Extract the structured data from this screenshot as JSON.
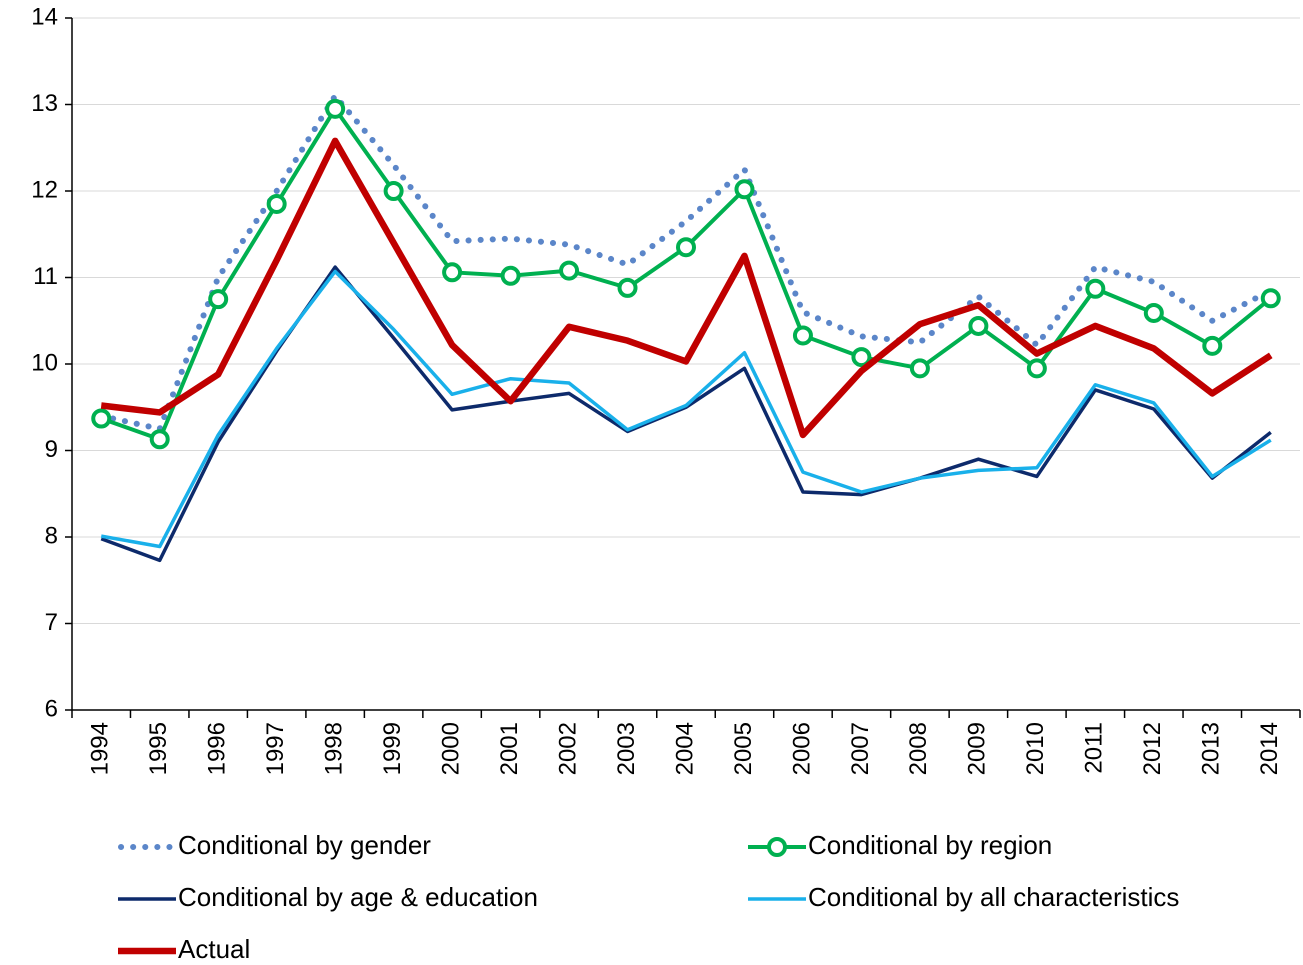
{
  "chart_data": {
    "type": "line",
    "categories": [
      "1994",
      "1995",
      "1996",
      "1997",
      "1998",
      "1999",
      "2000",
      "2001",
      "2002",
      "2003",
      "2004",
      "2005",
      "2006",
      "2007",
      "2008",
      "2009",
      "2010",
      "2011",
      "2012",
      "2013",
      "2014"
    ],
    "ylim": [
      6,
      14
    ],
    "yticks": [
      6,
      7,
      8,
      9,
      10,
      11,
      12,
      13,
      14
    ],
    "grid": true,
    "series": [
      {
        "name": "Conditional by gender",
        "color": "#5b86c9",
        "dash": "dotted",
        "width": 6,
        "values": [
          9.4,
          9.25,
          11.0,
          12.0,
          13.1,
          12.3,
          11.42,
          11.45,
          11.38,
          11.15,
          11.65,
          12.25,
          10.6,
          10.32,
          10.25,
          10.78,
          10.22,
          11.12,
          10.95,
          10.5,
          10.85
        ]
      },
      {
        "name": "Conditional by region",
        "color": "#00b050",
        "marker": "circle",
        "width": 4,
        "values": [
          9.37,
          9.13,
          10.75,
          11.85,
          12.95,
          12.0,
          11.06,
          11.02,
          11.08,
          10.88,
          11.35,
          12.02,
          10.33,
          10.08,
          9.95,
          10.44,
          9.95,
          10.87,
          10.59,
          10.21,
          10.76
        ]
      },
      {
        "name": "Conditional by age & education",
        "color": "#0d2a6b",
        "width": 3.5,
        "values": [
          7.98,
          7.73,
          9.1,
          10.15,
          11.12,
          10.3,
          9.47,
          9.57,
          9.66,
          9.22,
          9.5,
          9.95,
          8.52,
          8.49,
          8.68,
          8.9,
          8.7,
          9.7,
          9.48,
          8.68,
          9.21
        ]
      },
      {
        "name": "Conditional by all characteristics",
        "color": "#19b0ea",
        "width": 3.5,
        "values": [
          8.01,
          7.89,
          9.18,
          10.18,
          11.07,
          10.4,
          9.65,
          9.83,
          9.78,
          9.24,
          9.52,
          10.13,
          8.75,
          8.52,
          8.68,
          8.77,
          8.8,
          9.76,
          9.55,
          8.7,
          9.12
        ]
      },
      {
        "name": "Actual",
        "color": "#c00000",
        "width": 6.5,
        "values": [
          9.52,
          9.44,
          9.88,
          11.2,
          12.58,
          11.4,
          10.22,
          9.57,
          10.43,
          10.27,
          10.03,
          11.25,
          9.18,
          9.92,
          10.46,
          10.68,
          10.12,
          10.44,
          10.18,
          9.66,
          10.1
        ]
      }
    ]
  }
}
